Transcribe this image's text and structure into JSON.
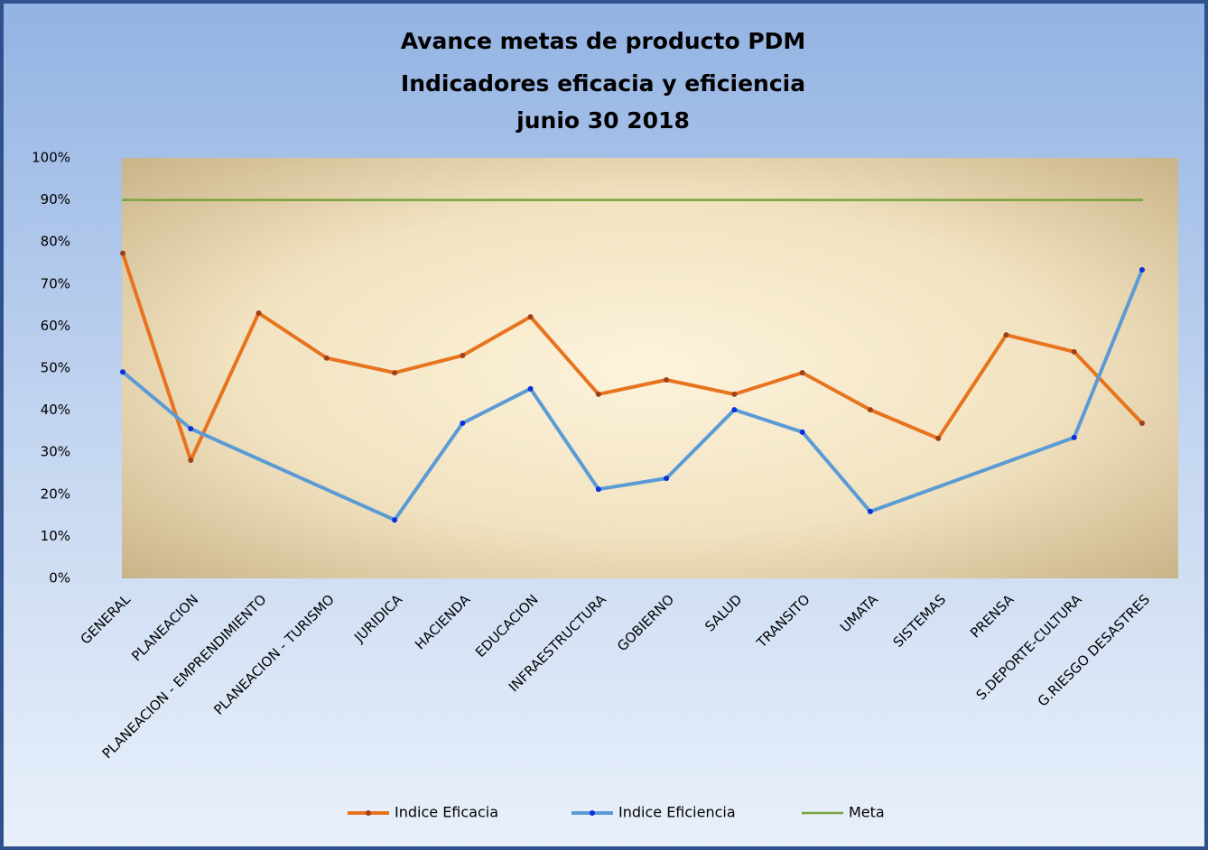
{
  "chart_data": {
    "type": "line",
    "title": [
      "Avance metas de producto PDM",
      "Indicadores eficacia y eficiencia",
      "junio 30 2018"
    ],
    "categories": [
      "GENERAL",
      "PLANEACION",
      "PLANEACION - EMPRENDIMIENTO",
      "PLANEACION - TURISMO",
      "JURIDICA",
      "HACIENDA",
      "EDUCACION",
      "INFRAESTRUCTURA",
      "GOBIERNO",
      "SALUD",
      "TRANSITO",
      "UMATA",
      "SISTEMAS",
      "PRENSA",
      "S.DEPORTE-CULTURA",
      "G.RIESGO DESASTRES"
    ],
    "series": [
      {
        "name": "Indice Eficacia",
        "color": "#e8731e",
        "marker_color": "#a0401a",
        "values": [
          77.3,
          28.1,
          63.1,
          52.4,
          48.9,
          53.0,
          62.2,
          43.8,
          47.2,
          43.8,
          48.9,
          40.1,
          33.3,
          57.9,
          53.9,
          36.9
        ]
      },
      {
        "name": "Indice Eficiencia",
        "color": "#5b9bd5",
        "marker_color": "#0a2fe0",
        "values": [
          49.1,
          35.6,
          null,
          null,
          13.9,
          36.9,
          45.1,
          21.2,
          23.8,
          40.1,
          34.8,
          15.9,
          null,
          null,
          33.5,
          73.4
        ]
      },
      {
        "name": "Meta",
        "color": "#77a33c",
        "markers": false,
        "values": [
          90,
          90,
          90,
          90,
          90,
          90,
          90,
          90,
          90,
          90,
          90,
          90,
          90,
          90,
          90,
          90
        ]
      }
    ],
    "span_gaps": true,
    "ylim": [
      0,
      100
    ],
    "yticks": [
      {
        "value": 0,
        "label": "0%"
      },
      {
        "value": 10,
        "label": "10%"
      },
      {
        "value": 20,
        "label": "20%"
      },
      {
        "value": 30,
        "label": "30%"
      },
      {
        "value": 40,
        "label": "40%"
      },
      {
        "value": 50,
        "label": "50%"
      },
      {
        "value": 60,
        "label": "60%"
      },
      {
        "value": 70,
        "label": "70%"
      },
      {
        "value": 80,
        "label": "80%"
      },
      {
        "value": 90,
        "label": "90%"
      },
      {
        "value": 100,
        "label": "100%"
      }
    ],
    "grid": false,
    "legend": "bottom"
  }
}
